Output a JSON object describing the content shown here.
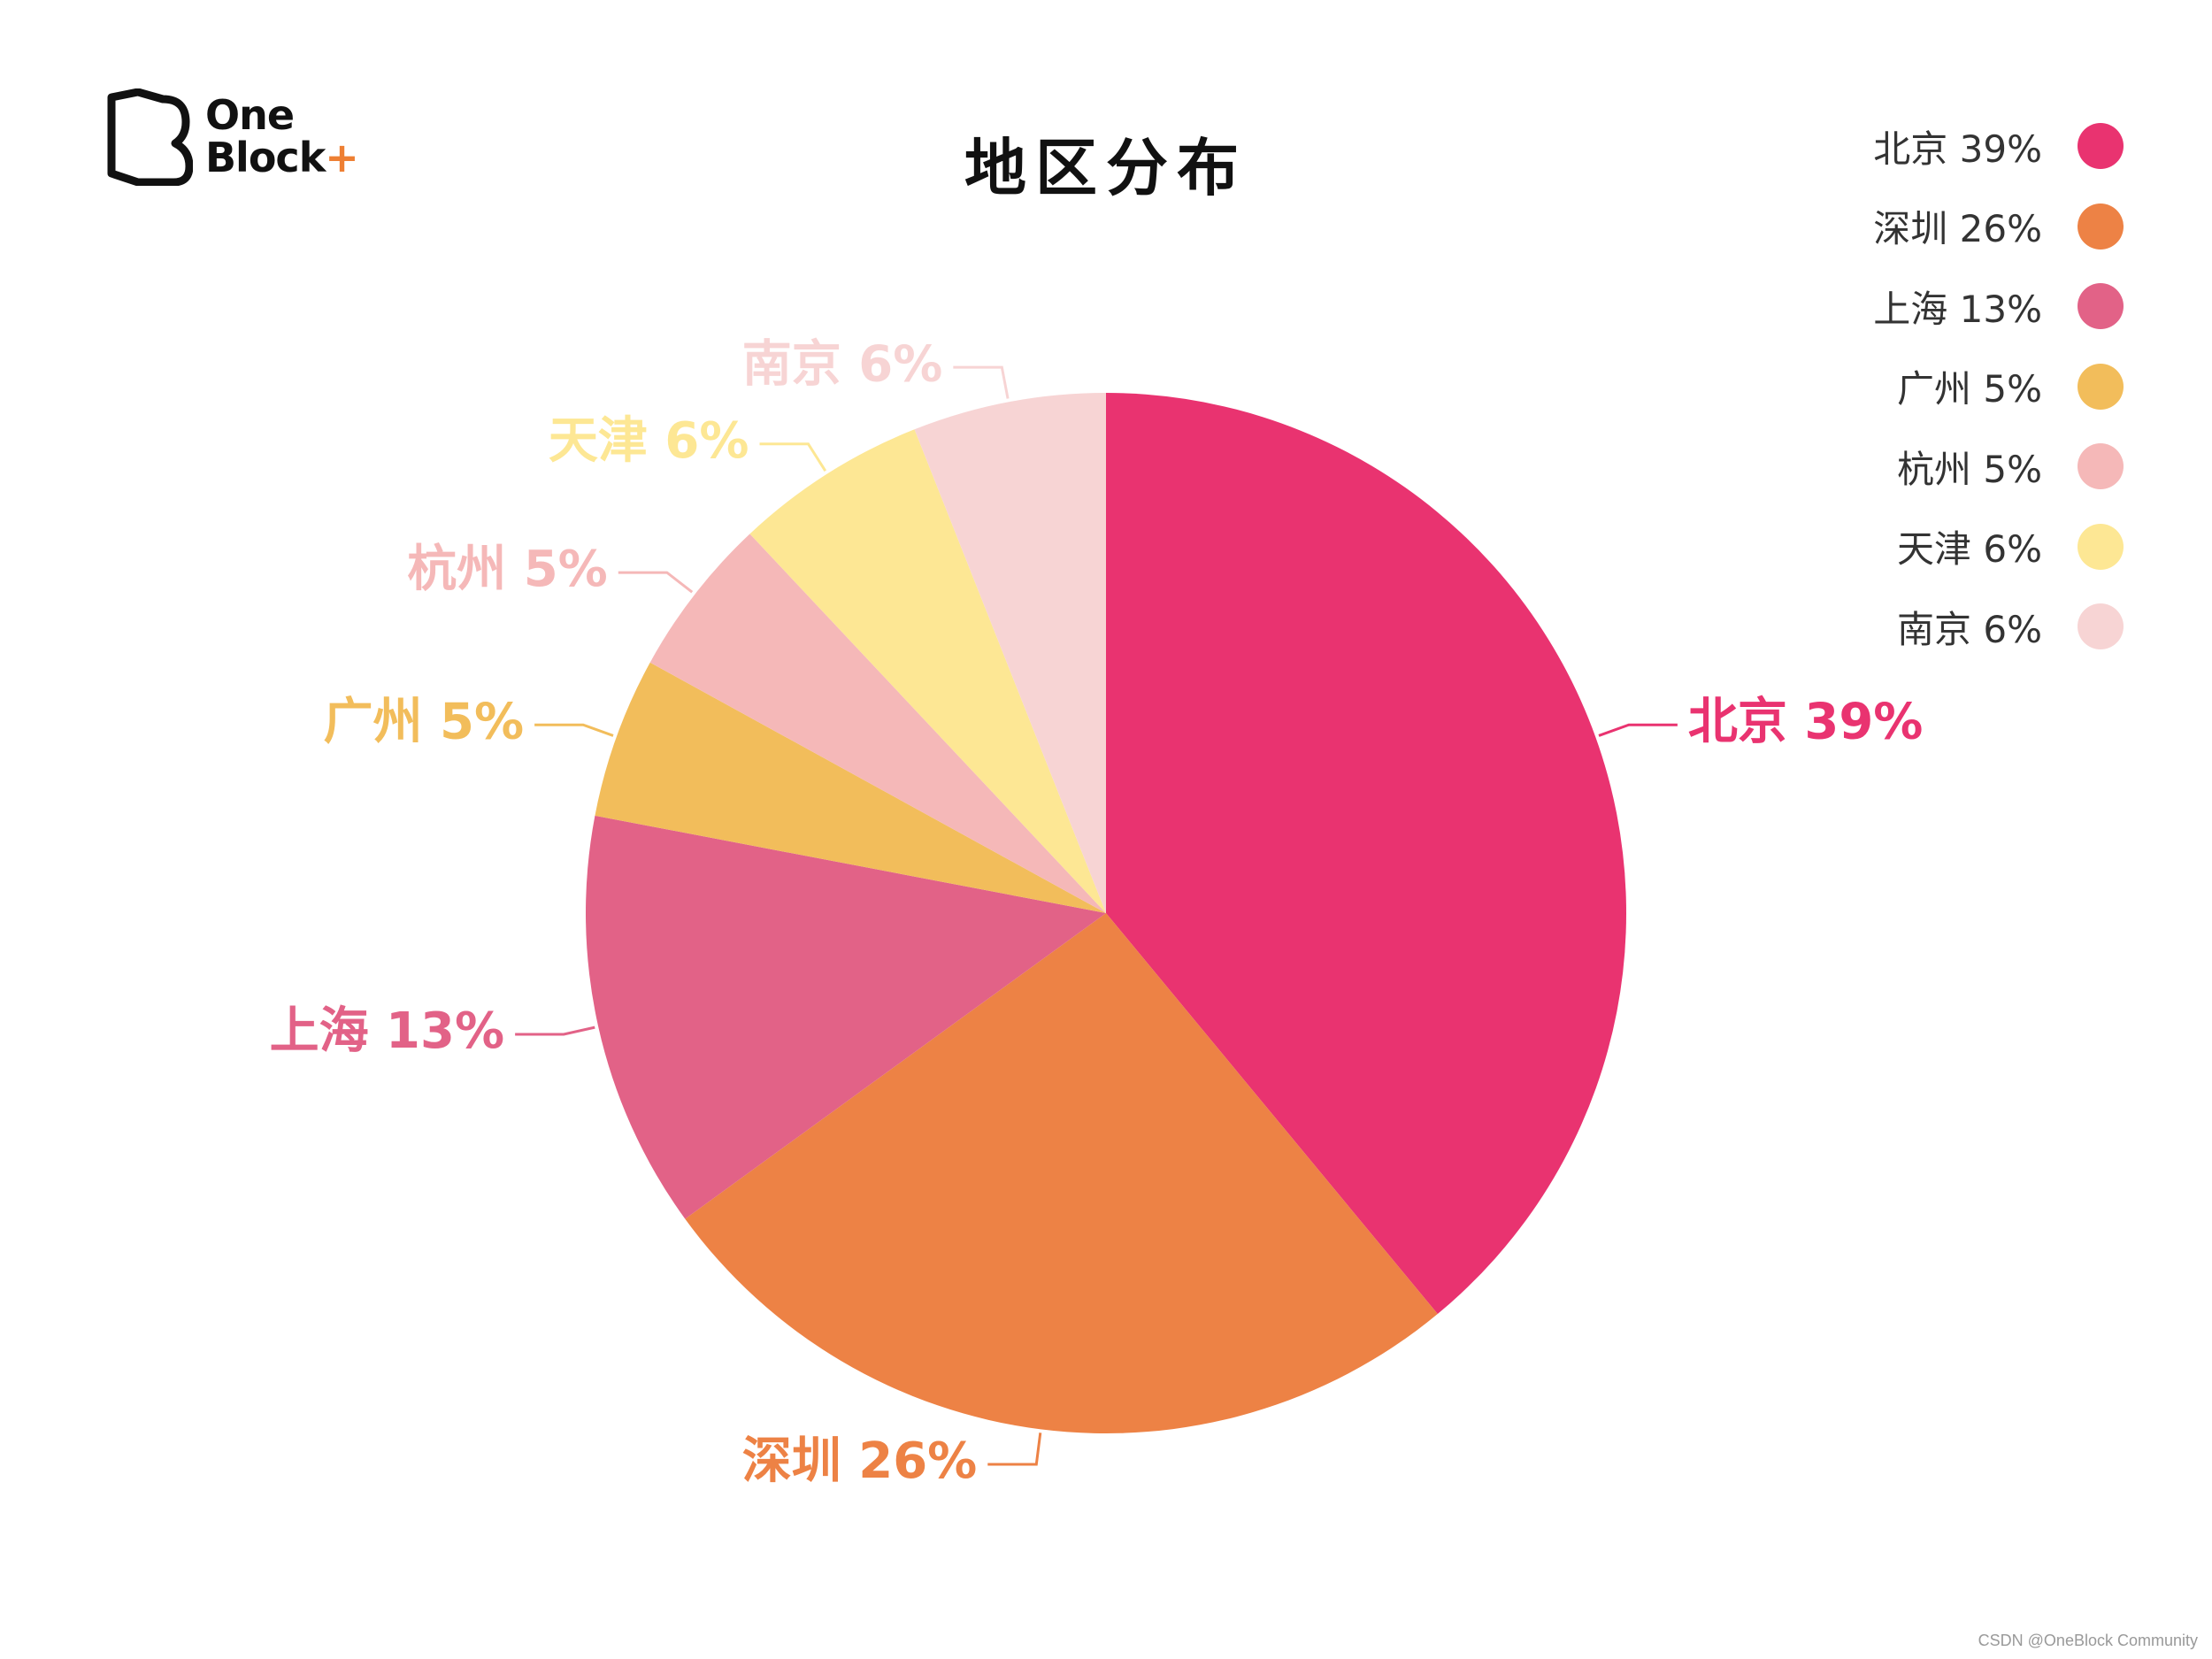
{
  "logo": {
    "line1": "One",
    "line2": "Block",
    "plus": "+",
    "accent_color": "#ee7f33"
  },
  "watermark": "CSDN @OneBlock Community",
  "chart_data": {
    "type": "pie",
    "title": "地区分布",
    "start_angle_deg": 0,
    "direction": "clockwise",
    "legend_position": "top-right",
    "slices": [
      {
        "name": "北京",
        "value": 39,
        "label": "北京 39%",
        "color": "#e93370"
      },
      {
        "name": "深圳",
        "value": 26,
        "label": "深圳 26%",
        "color": "#ed8245"
      },
      {
        "name": "上海",
        "value": 13,
        "label": "上海 13%",
        "color": "#e26287"
      },
      {
        "name": "广州",
        "value": 5,
        "label": "广州 5%",
        "color": "#f2bd5b"
      },
      {
        "name": "杭州",
        "value": 5,
        "label": "杭州 5%",
        "color": "#f5b8b8"
      },
      {
        "name": "天津",
        "value": 6,
        "label": "天津 6%",
        "color": "#fde794"
      },
      {
        "name": "南京",
        "value": 6,
        "label": "南京 6%",
        "color": "#f7d4d4"
      }
    ]
  }
}
